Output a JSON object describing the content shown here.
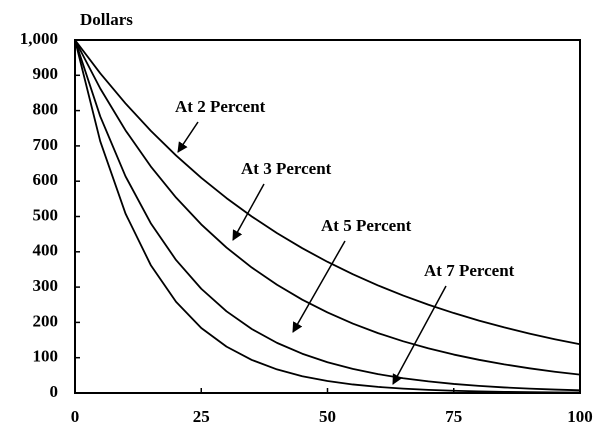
{
  "chart_data": {
    "type": "line",
    "y_label": "Dollars",
    "x": [
      0,
      5,
      10,
      15,
      20,
      25,
      30,
      35,
      40,
      45,
      50,
      55,
      60,
      65,
      70,
      75,
      80,
      85,
      90,
      95,
      100
    ],
    "series": [
      {
        "name": "At 2 Percent",
        "color": "#000000",
        "values": [
          1000,
          905.7,
          820.3,
          743.0,
          673.0,
          609.5,
          552.1,
          500.0,
          452.9,
          410.2,
          371.5,
          336.5,
          304.8,
          276.1,
          250.0,
          226.5,
          205.1,
          185.8,
          168.3,
          152.4,
          138.0
        ]
      },
      {
        "name": "At 3 Percent",
        "color": "#000000",
        "values": [
          1000,
          862.6,
          744.1,
          641.9,
          553.7,
          477.6,
          412.0,
          355.4,
          306.6,
          264.4,
          228.1,
          196.8,
          169.7,
          146.4,
          126.3,
          108.9,
          94.0,
          81.1,
          69.9,
          60.3,
          52.0
        ]
      },
      {
        "name": "At 5 Percent",
        "color": "#000000",
        "values": [
          1000,
          783.5,
          613.9,
          481.0,
          376.9,
          295.3,
          231.4,
          181.3,
          142.0,
          111.3,
          87.2,
          68.3,
          53.5,
          41.9,
          32.9,
          25.7,
          20.2,
          15.8,
          12.4,
          9.7,
          7.6
        ]
      },
      {
        "name": "At 7 Percent",
        "color": "#000000",
        "values": [
          1000,
          713.0,
          508.3,
          362.4,
          258.4,
          184.2,
          131.4,
          93.7,
          66.8,
          47.6,
          33.9,
          24.2,
          17.3,
          12.3,
          8.8,
          6.3,
          4.5,
          3.2,
          2.3,
          1.6,
          1.2
        ]
      }
    ],
    "xlim": [
      0,
      100
    ],
    "xticks": [
      0,
      25,
      50,
      75,
      100
    ],
    "ylim": [
      0,
      1000
    ],
    "yticks": [
      0,
      100,
      200,
      300,
      400,
      500,
      600,
      700,
      800,
      900,
      {
        "value": 1000,
        "label": "1,000"
      }
    ],
    "grid": false
  }
}
